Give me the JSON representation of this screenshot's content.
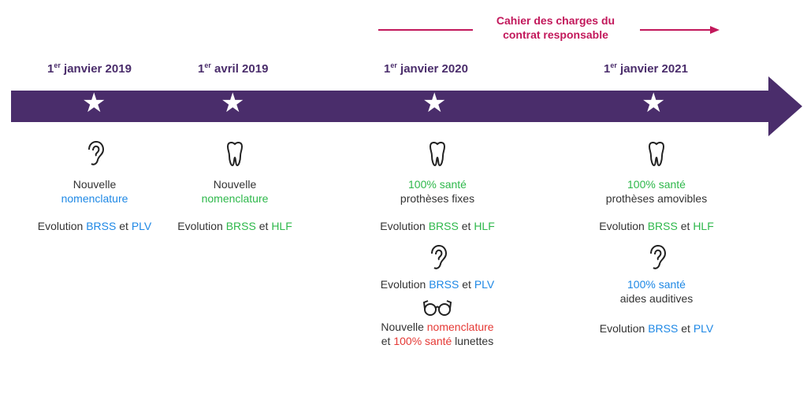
{
  "banner": {
    "line1": "Cahier des charges du",
    "line2": "contrat responsable",
    "color": "#c2185b"
  },
  "timeline": {
    "color": "#4a2d6b"
  },
  "milestones": [
    {
      "date_prefix": "1",
      "date_sup": "er",
      "date_rest": " janvier 2019",
      "icons": [
        "ear-icon"
      ],
      "block1": {
        "line1": "Nouvelle",
        "line2": "nomenclature"
      },
      "evolution": {
        "prefix": "Evolution ",
        "a": "BRSS",
        "mid": " et ",
        "b": "PLV"
      }
    },
    {
      "date_prefix": "1",
      "date_sup": "er",
      "date_rest": " avril 2019",
      "icons": [
        "tooth-icon"
      ],
      "block1": {
        "line1": "Nouvelle",
        "line2": "nomenclature"
      },
      "evolution": {
        "prefix": "Evolution ",
        "a": "BRSS",
        "mid": " et ",
        "b": "HLF"
      }
    },
    {
      "date_prefix": "1",
      "date_sup": "er",
      "date_rest": " janvier 2020",
      "icons": [
        "tooth-icon",
        "ear-icon",
        "glasses-icon"
      ],
      "block1": {
        "line1": "100% santé",
        "line2": "prothèses fixes"
      },
      "evolution": {
        "prefix": "Evolution ",
        "a": "BRSS",
        "mid": " et ",
        "b": "HLF"
      },
      "evolution2": {
        "prefix": "Evolution ",
        "a": "BRSS",
        "mid": " et ",
        "b": "PLV"
      },
      "block3": {
        "line1_a": "Nouvelle ",
        "line1_b": "nomenclature",
        "line2_a": "et ",
        "line2_b": "100% santé",
        "line2_c": " lunettes"
      }
    },
    {
      "date_prefix": "1",
      "date_sup": "er",
      "date_rest": " janvier 2021",
      "icons": [
        "tooth-icon",
        "ear-icon"
      ],
      "block1": {
        "line1": "100% santé",
        "line2": "prothèses amovibles"
      },
      "evolution": {
        "prefix": "Evolution ",
        "a": "BRSS",
        "mid": " et ",
        "b": "HLF"
      },
      "block2": {
        "line1": "100% santé",
        "line2": "aides auditives"
      },
      "evolution2": {
        "prefix": "Evolution ",
        "a": "BRSS",
        "mid": " et ",
        "b": "PLV"
      }
    }
  ],
  "star_glyph": "★"
}
